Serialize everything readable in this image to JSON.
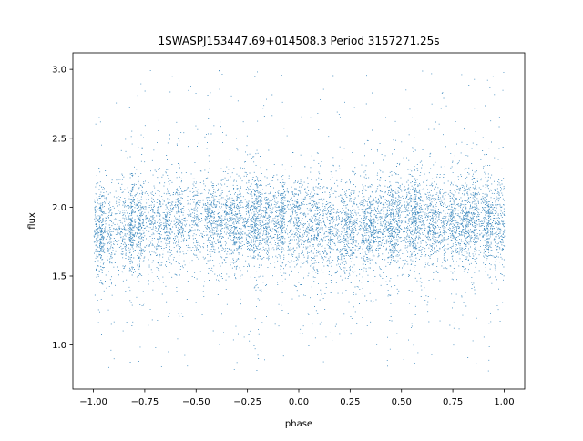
{
  "chart_data": {
    "type": "scatter",
    "title": "1SWASPJ153447.69+014508.3 Period 3157271.25s",
    "xlabel": "phase",
    "ylabel": "flux",
    "xlim": [
      -1.1,
      1.1
    ],
    "ylim": [
      0.68,
      3.12
    ],
    "x_ticks": [
      -1.0,
      -0.75,
      -0.5,
      -0.25,
      0.0,
      0.25,
      0.5,
      0.75,
      1.0
    ],
    "x_tick_labels": [
      "−1.00",
      "−0.75",
      "−0.50",
      "−0.25",
      "0.00",
      "0.25",
      "0.50",
      "0.75",
      "1.00"
    ],
    "y_ticks": [
      1.0,
      1.5,
      2.0,
      2.5,
      3.0
    ],
    "y_tick_labels": [
      "1.0",
      "1.5",
      "2.0",
      "2.5",
      "3.0"
    ],
    "grid": false,
    "series_color": "#1f77b4",
    "distribution": {
      "x_range": [
        -1.0,
        1.0
      ],
      "median_flux": 1.88,
      "typical_flux_range": [
        1.6,
        2.2
      ],
      "full_flux_range": [
        0.8,
        3.0
      ],
      "profile_x": [
        -1.0,
        -0.9,
        -0.8,
        -0.7,
        -0.6,
        -0.5,
        -0.4,
        -0.3,
        -0.2,
        -0.1,
        0.0,
        0.1,
        0.2,
        0.3,
        0.4,
        0.5,
        0.6,
        0.7,
        0.8,
        0.9,
        1.0
      ],
      "profile_median": [
        1.83,
        1.85,
        1.86,
        1.88,
        1.9,
        1.92,
        1.9,
        1.88,
        1.9,
        1.9,
        1.88,
        1.85,
        1.83,
        1.85,
        1.88,
        1.9,
        1.9,
        1.88,
        1.9,
        1.9,
        1.88
      ]
    }
  }
}
